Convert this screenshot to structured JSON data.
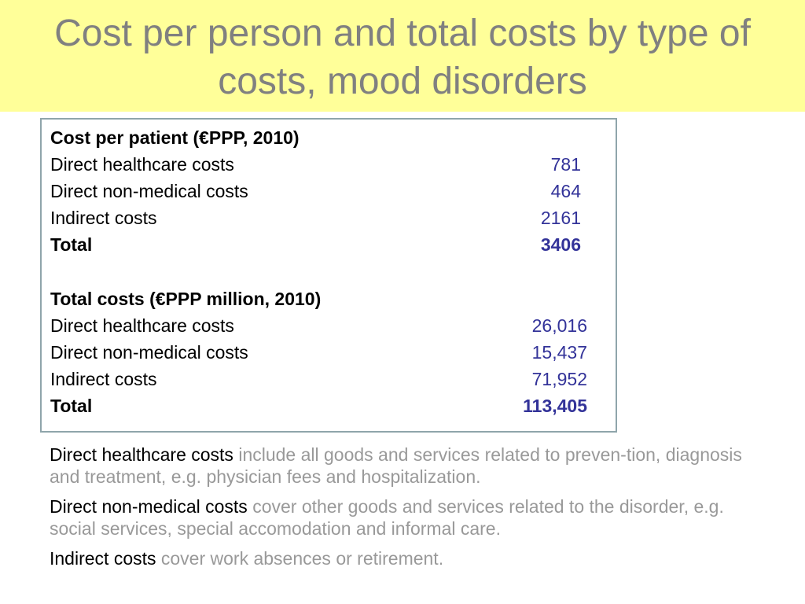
{
  "title": "Cost per person and total costs by type of costs, mood disorders",
  "colors": {
    "title_band": "#ffff99",
    "title_text": "#808080",
    "value_text": "#333399",
    "box_border": "#8fa5ab",
    "description_text": "#999999"
  },
  "per_patient": {
    "heading": "Cost per patient (€PPP, 2010)",
    "rows": [
      {
        "label": "Direct healthcare costs",
        "value": "781"
      },
      {
        "label": "Direct non-medical costs",
        "value": "464"
      },
      {
        "label": "Indirect costs",
        "value": "2161"
      },
      {
        "label": "Total",
        "value": "3406"
      }
    ]
  },
  "total_costs": {
    "heading": "Total costs (€PPP million, 2010)",
    "rows": [
      {
        "label": "Direct healthcare costs",
        "value": "26,016"
      },
      {
        "label": "Direct non-medical costs",
        "value": "15,437"
      },
      {
        "label": "Indirect costs",
        "value": "71,952"
      },
      {
        "label": "Total",
        "value": "113,405"
      }
    ]
  },
  "notes": [
    {
      "term": "Direct healthcare costs",
      "description": "include all goods and services related to preven-tion, diagnosis and treatment, e.g. physician fees and hospitalization."
    },
    {
      "term": "Direct non-medical costs",
      "description": "cover other goods and services related to the disorder, e.g. social services, special accomodation and informal care."
    },
    {
      "term": "Indirect costs",
      "description": "cover work absences or retirement."
    }
  ]
}
